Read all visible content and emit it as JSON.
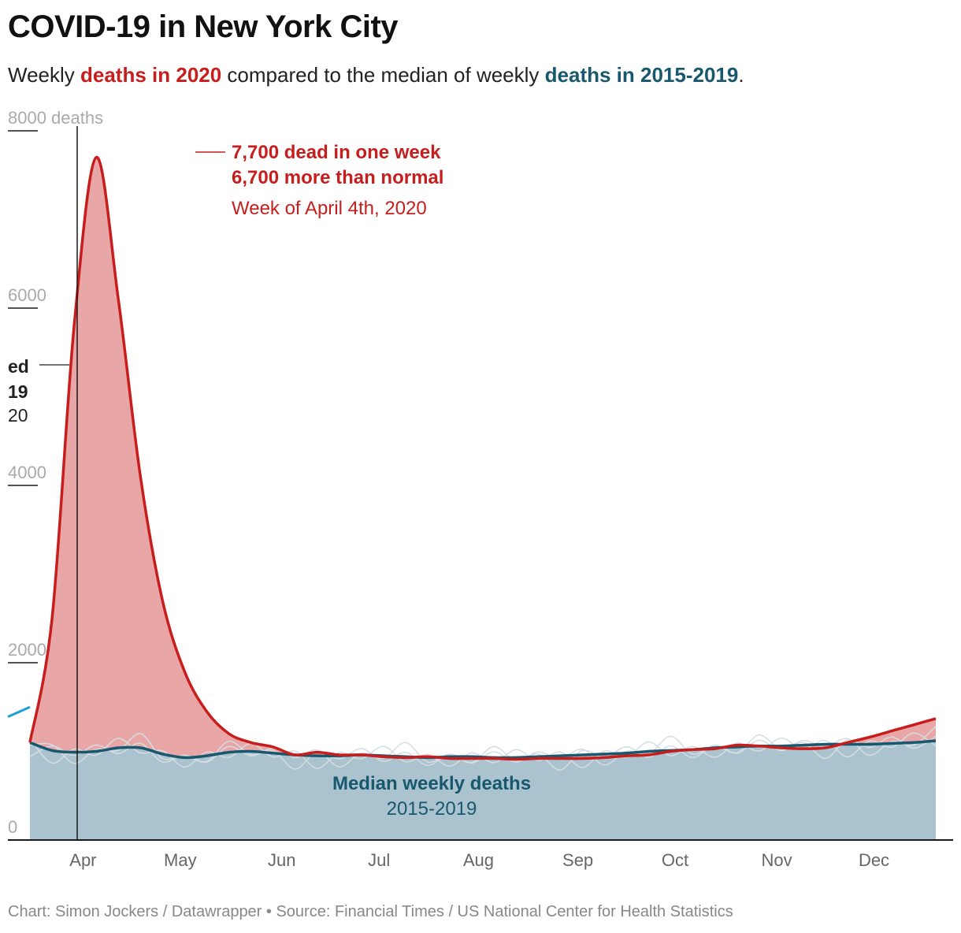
{
  "title": "COVID-19 in New York City",
  "subtitle": {
    "p1": "Weekly ",
    "red": "deaths in 2020",
    "p2": " compared to the median of weekly ",
    "blue": "deaths in 2015-2019",
    "p3": "."
  },
  "colors": {
    "deaths_2020": "#c71e1d",
    "deaths_2020_fill": "#e8a6a7",
    "median": "#18586e",
    "median_fill": "#abc3ce",
    "other_years": "#d4dde1",
    "early_2020": "#1ea0d6",
    "axis": "#1a1a1a",
    "tick_label": "#aaaaaa",
    "month_label": "#666666"
  },
  "annotations": {
    "peak": {
      "line1": "7,700 dead in one week",
      "line2": "6,700 more than normal",
      "line3": "Week of April 4th, 2020"
    },
    "median": {
      "line1": "Median weekly deaths",
      "line2": "2015-2019"
    },
    "cut_off": {
      "line1": "ed",
      "line2": "19",
      "line3": "20"
    }
  },
  "footer": {
    "credit": "Chart: Simon Jockers / Datawrapper",
    "separator": " • ",
    "source": "Source: Financial Times / US National Center for Health Statistics"
  },
  "chart_data": {
    "type": "area",
    "title": "COVID-19 in New York City",
    "ylim": [
      0,
      8000
    ],
    "y_ticks": [
      0,
      2000,
      4000,
      6000,
      8000
    ],
    "y_tick_labels": [
      "0",
      "2000",
      "4000",
      "6000",
      "8000 deaths"
    ],
    "grid": false,
    "x_range_week": [
      10,
      52
    ],
    "month_ticks": [
      {
        "label": "Apr",
        "week": 13.4
      },
      {
        "label": "May",
        "week": 17.8
      },
      {
        "label": "Jun",
        "week": 22.4
      },
      {
        "label": "Jul",
        "week": 26.8
      },
      {
        "label": "Aug",
        "week": 31.3
      },
      {
        "label": "Sep",
        "week": 35.8
      },
      {
        "label": "Oct",
        "week": 40.2
      },
      {
        "label": "Nov",
        "week": 44.8
      },
      {
        "label": "Dec",
        "week": 49.2
      }
    ],
    "series": [
      {
        "name": "deaths in 2020",
        "x": [
          11,
          12,
          13,
          14,
          15,
          16,
          17,
          18,
          19,
          20,
          21,
          22,
          23,
          24,
          25,
          26,
          27,
          28,
          29,
          30,
          31,
          32,
          33,
          34,
          35,
          36,
          37,
          38,
          39,
          40,
          41,
          42,
          43,
          44,
          45,
          46,
          47,
          48,
          49,
          50,
          51,
          52
        ],
        "values": [
          1100,
          2500,
          5800,
          7700,
          6100,
          4100,
          2700,
          1900,
          1450,
          1200,
          1100,
          1050,
          960,
          990,
          960,
          960,
          940,
          930,
          940,
          920,
          920,
          920,
          910,
          920,
          920,
          920,
          930,
          950,
          960,
          1000,
          1020,
          1030,
          1070,
          1060,
          1040,
          1030,
          1040,
          1100,
          1160,
          1230,
          1300,
          1370
        ]
      },
      {
        "name": "deaths in 2015-2019",
        "x": [
          11,
          12,
          13,
          14,
          15,
          16,
          17,
          18,
          19,
          20,
          21,
          22,
          23,
          24,
          25,
          26,
          27,
          28,
          29,
          30,
          31,
          32,
          33,
          34,
          35,
          36,
          37,
          38,
          39,
          40,
          41,
          42,
          43,
          44,
          45,
          46,
          47,
          48,
          49,
          50,
          51,
          52
        ],
        "values": [
          1100,
          1010,
          990,
          1000,
          1040,
          1040,
          970,
          930,
          950,
          990,
          1000,
          980,
          960,
          950,
          950,
          960,
          950,
          940,
          930,
          940,
          940,
          930,
          930,
          940,
          950,
          960,
          970,
          980,
          1000,
          1010,
          1020,
          1040,
          1050,
          1060,
          1060,
          1070,
          1080,
          1080,
          1080,
          1090,
          1100,
          1120
        ]
      }
    ],
    "early_2020_segment": {
      "x": [
        10,
        11
      ],
      "values": [
        1390,
        1500
      ]
    }
  }
}
